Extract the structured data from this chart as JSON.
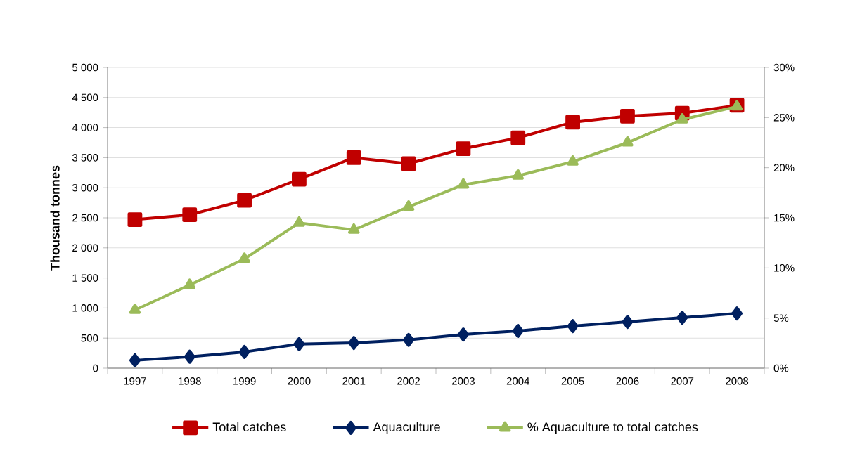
{
  "chart_data": {
    "type": "line",
    "ylabel": "Thousand tonnes",
    "categories": [
      "1997",
      "1998",
      "1999",
      "2000",
      "2001",
      "2002",
      "2003",
      "2004",
      "2005",
      "2006",
      "2007",
      "2008"
    ],
    "series": [
      {
        "name": "Total catches",
        "color": "#c00000",
        "marker": "square",
        "values": [
          2470,
          2550,
          2790,
          3140,
          3500,
          3400,
          3650,
          3830,
          4090,
          4190,
          4240,
          4370
        ]
      },
      {
        "name": "Aquaculture",
        "color": "#002060",
        "marker": "diamond",
        "values": [
          130,
          190,
          270,
          400,
          420,
          470,
          560,
          620,
          700,
          770,
          840,
          910
        ]
      },
      {
        "name": "% Aquaculture to total catches",
        "color": "#9bbb59",
        "marker": "triangle",
        "axis": "y2",
        "values": [
          5.8,
          8.3,
          10.9,
          14.5,
          13.8,
          16.1,
          18.3,
          19.2,
          20.6,
          22.5,
          24.8,
          26.1
        ]
      }
    ],
    "ylim": [
      0,
      5000
    ],
    "yticks": [
      0,
      500,
      {
        "value": 1000,
        "label": "1 000"
      },
      {
        "value": 1500,
        "label": "1 500"
      },
      {
        "value": 2000,
        "label": "2 000"
      },
      {
        "value": 2500,
        "label": "2 500"
      },
      {
        "value": 3000,
        "label": "3 000"
      },
      {
        "value": 3500,
        "label": "3 500"
      },
      {
        "value": 4000,
        "label": "4 000"
      },
      {
        "value": 4500,
        "label": "4 500"
      },
      {
        "value": 5000,
        "label": "5 000"
      }
    ],
    "y2lim": [
      0,
      30
    ],
    "y2ticks": [
      {
        "value": 0,
        "label": "0%"
      },
      {
        "value": 5,
        "label": "5%"
      },
      {
        "value": 10,
        "label": "10%"
      },
      {
        "value": 15,
        "label": "15%"
      },
      {
        "value": 20,
        "label": "20%"
      },
      {
        "value": 25,
        "label": "25%"
      },
      {
        "value": 30,
        "label": "30%"
      }
    ],
    "grid": "y",
    "legend": "bottom",
    "line_style": "solid"
  }
}
